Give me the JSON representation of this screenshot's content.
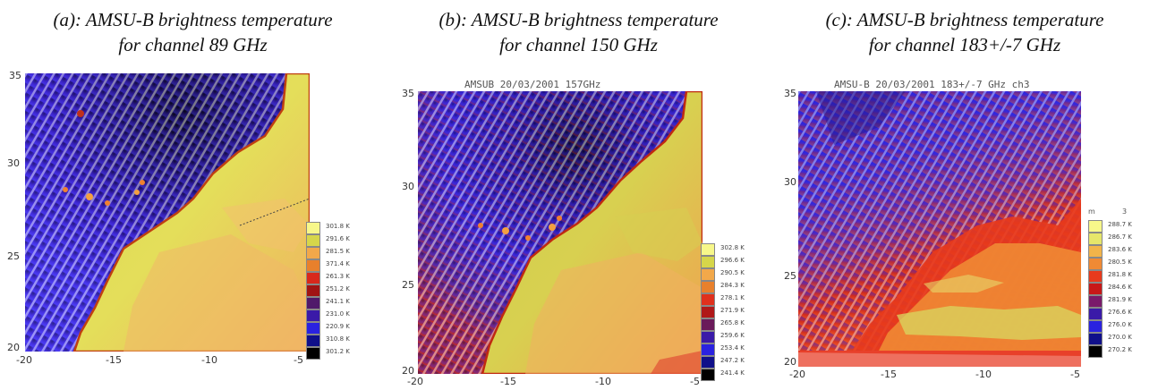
{
  "panels": [
    {
      "caption_line1": "(a): AMSU-B brightness temperature",
      "caption_line2": "for channel 89 GHz",
      "plot_title": "",
      "y_ticks": [
        "35",
        "30",
        "25",
        "20"
      ],
      "x_ticks": [
        "-20",
        "-15",
        "-10",
        "-5"
      ],
      "legend_header": [
        "",
        ""
      ],
      "legend": [
        "301.8 K",
        "291.6 K",
        "281.5 K",
        "371.4 K",
        "261.3 K",
        "251.2 K",
        "241.1 K",
        "231.0 K",
        "220.9 K",
        "310.8 K",
        "301.2 K"
      ],
      "legend_colors": [
        "#f7f78a",
        "#d6d64a",
        "#f2a84a",
        "#e8802c",
        "#d8281c",
        "#a01414",
        "#501a6a",
        "#3a1aa8",
        "#2a22e0",
        "#10108a",
        "#000000"
      ]
    },
    {
      "caption_line1": "(b): AMSU-B brightness temperature",
      "caption_line2": "for channel 150  GHz",
      "plot_title": "AMSUB 20/03/2001 157GHz",
      "y_ticks": [
        "35",
        "30",
        "25",
        "20"
      ],
      "x_ticks": [
        "-20",
        "-15",
        "-10",
        "-5"
      ],
      "legend_header": [
        "",
        ""
      ],
      "legend": [
        "302.8 K",
        "296.6 K",
        "290.5 K",
        "284.3 K",
        "278.1 K",
        "271.9 K",
        "265.8 K",
        "259.6 K",
        "253.4 K",
        "247.2 K",
        "241.4 K"
      ],
      "legend_colors": [
        "#f7f78a",
        "#d6d64a",
        "#f2a84a",
        "#e8802c",
        "#e0301c",
        "#b01818",
        "#6a1a5a",
        "#3a1aa8",
        "#2a22e0",
        "#10108a",
        "#000000"
      ]
    },
    {
      "caption_line1": "(c): AMSU-B brightness temperature",
      "caption_line2": "for channel 183+/-7  GHz",
      "plot_title": "AMSU-B 20/03/2001 183+/-7 GHz ch3",
      "y_ticks": [
        "35",
        "30",
        "25",
        "20"
      ],
      "x_ticks": [
        "-20",
        "-15",
        "-10",
        "-5"
      ],
      "legend_header": [
        "m",
        "3"
      ],
      "legend": [
        "288.7 K",
        "286.7 K",
        "283.6 K",
        "280.5 K",
        "281.8 K",
        "284.6 K",
        "281.9 K",
        "276.6 K",
        "276.0 K",
        "270.0 K",
        "270.2 K"
      ],
      "legend_colors": [
        "#f7f78a",
        "#e6e66a",
        "#f2b44a",
        "#f08a34",
        "#e83a1c",
        "#c81818",
        "#7a1a6a",
        "#3a1aa8",
        "#2a22e0",
        "#10108a",
        "#000000"
      ]
    }
  ]
}
